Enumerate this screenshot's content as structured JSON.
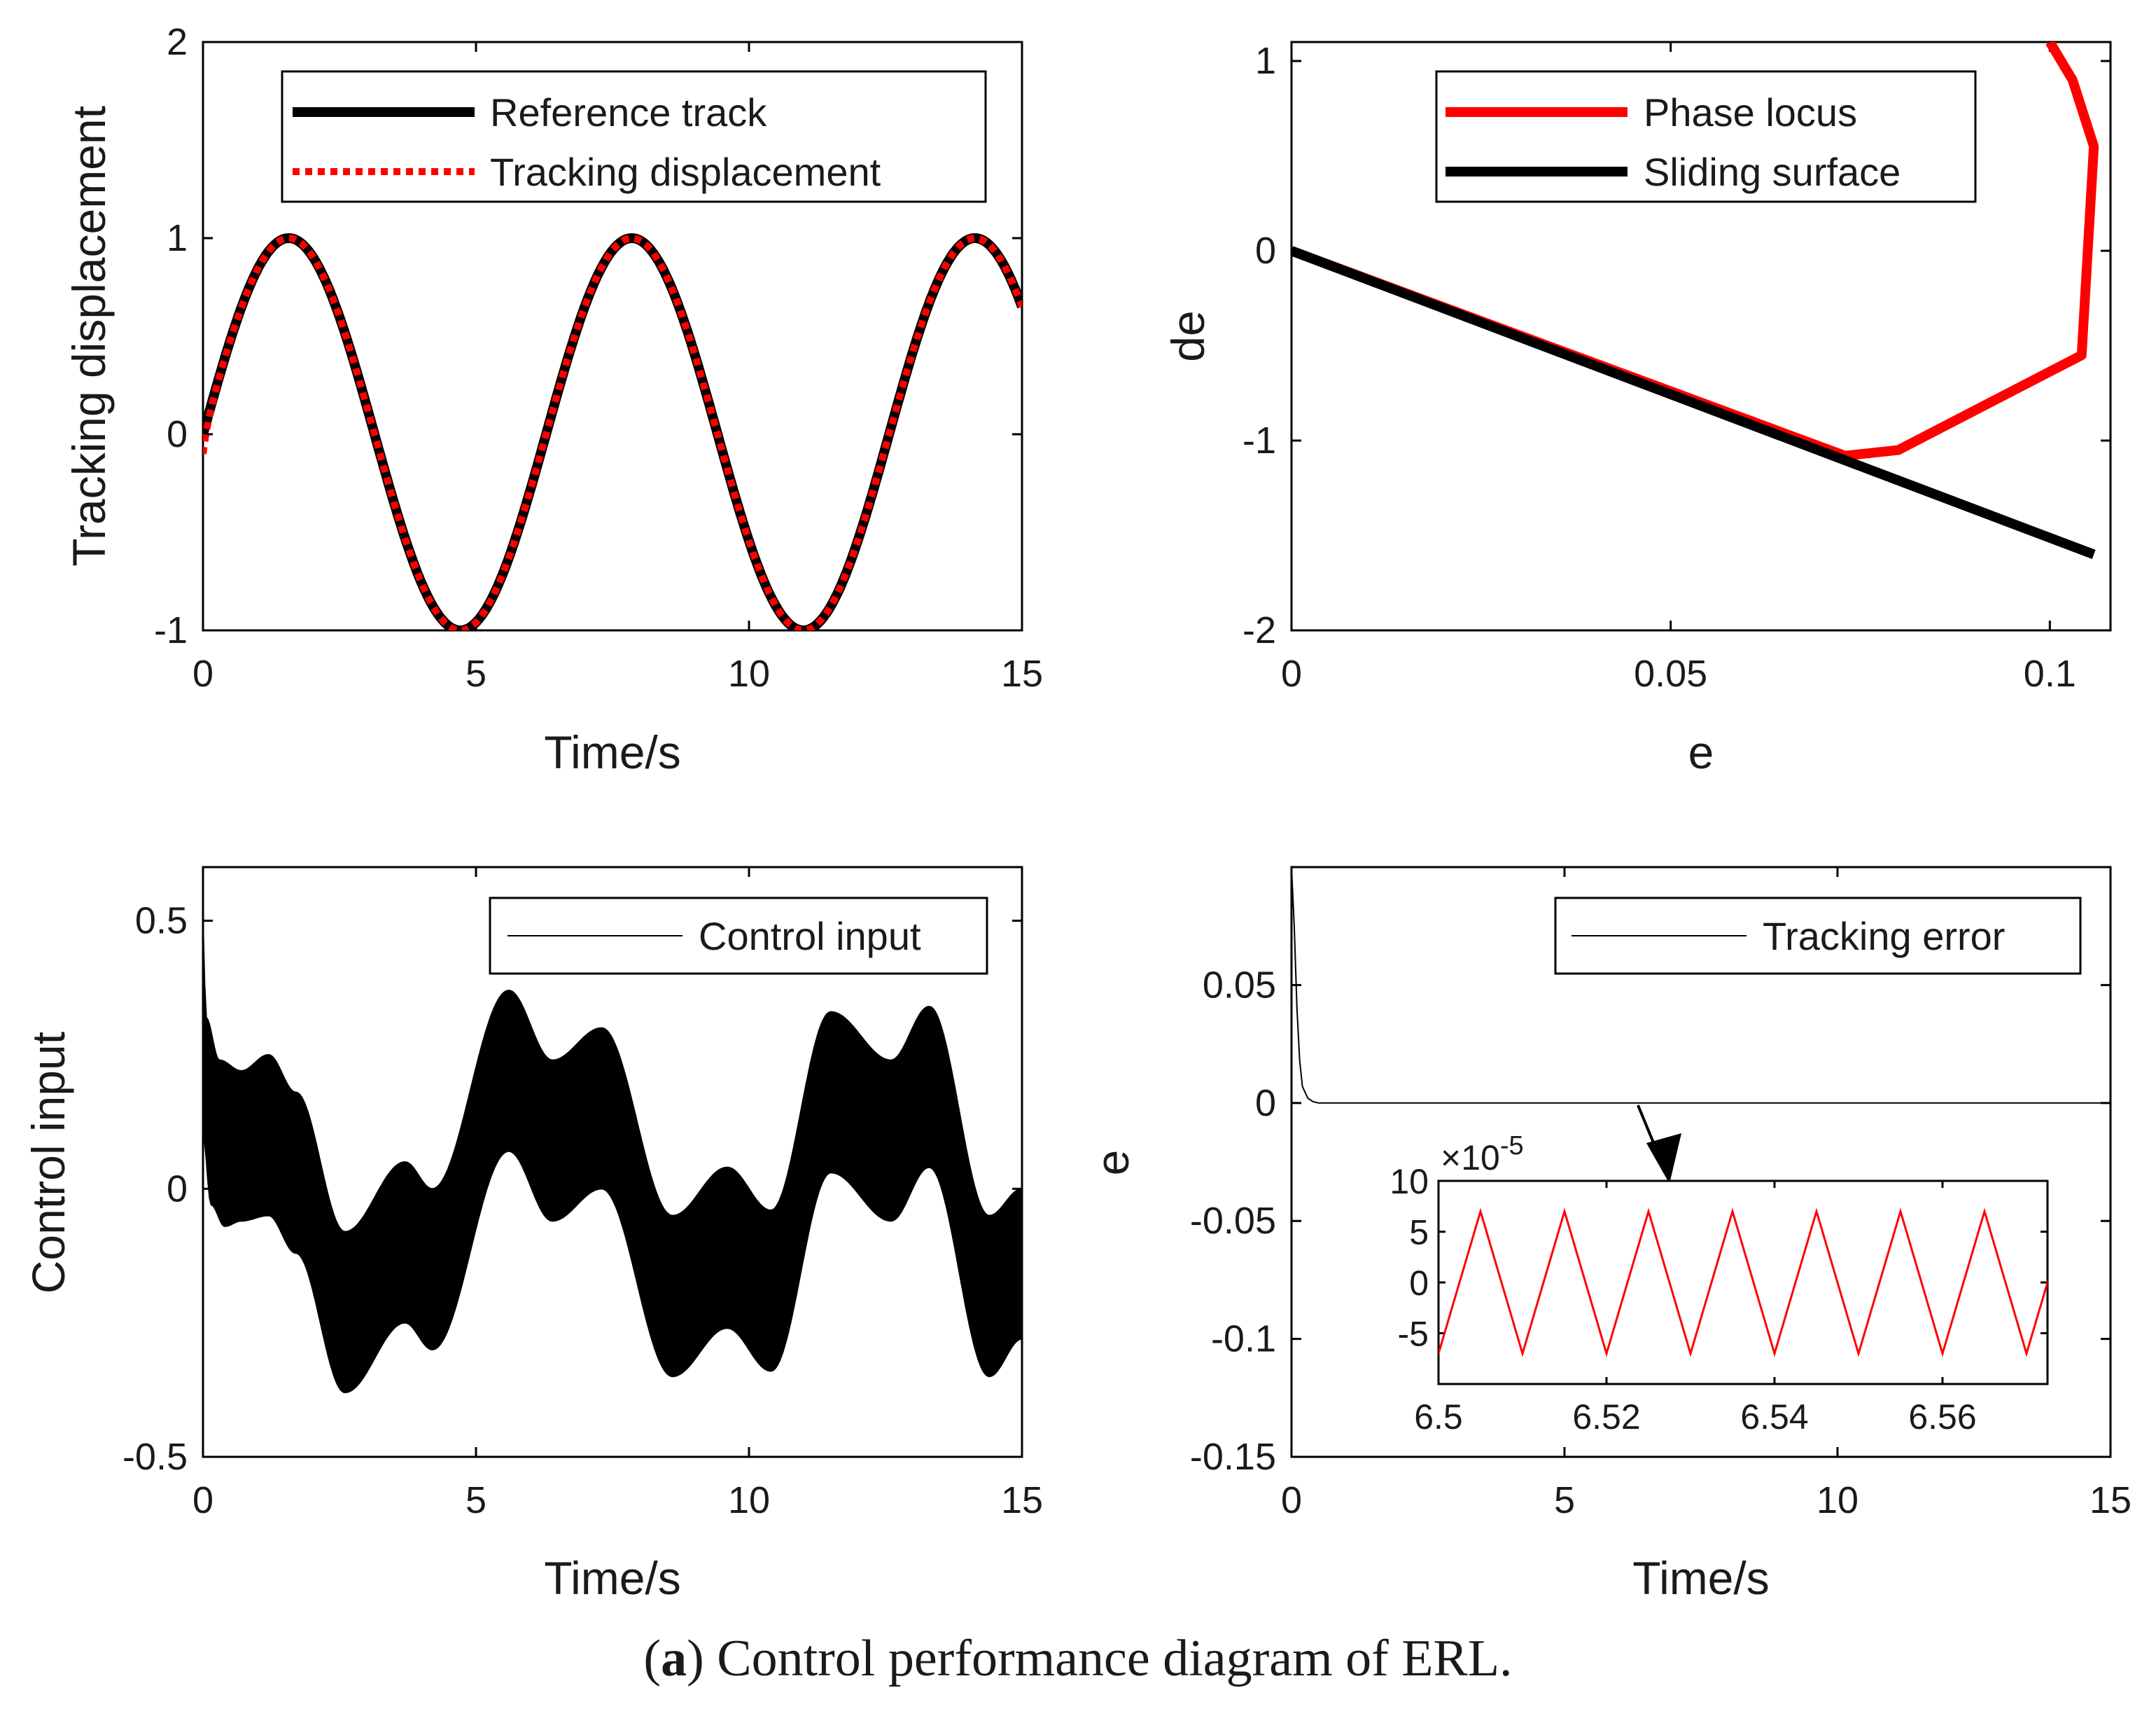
{
  "caption": {
    "label": "a",
    "text": ") Control performance diagram of ERL.",
    "open": "("
  },
  "chart_data": [
    {
      "id": "p1",
      "type": "line",
      "xlabel": "Time/s",
      "ylabel": "Tracking displacement",
      "xlim": [
        0,
        15
      ],
      "ylim": [
        -1,
        2
      ],
      "xticks": [
        0,
        5,
        10,
        15
      ],
      "yticks": [
        -1,
        0,
        1,
        2
      ],
      "legend": [
        {
          "name": "Reference track",
          "color": "#000000",
          "style": "solid"
        },
        {
          "name": "Tracking displacement",
          "color": "#ff0000",
          "style": "dotted"
        }
      ],
      "series": [
        {
          "name": "Reference track",
          "function": "y = sin(t)",
          "t_range": [
            0,
            15
          ]
        },
        {
          "name": "Tracking displacement",
          "function": "y ≈ sin(t), starts at -0.1",
          "t_range": [
            0,
            15
          ]
        }
      ]
    },
    {
      "id": "p2",
      "type": "line",
      "xlabel": "e",
      "ylabel": "de",
      "xlim": [
        0,
        0.108
      ],
      "ylim": [
        -2,
        1.1
      ],
      "xticks": [
        0,
        0.05,
        0.1
      ],
      "yticks": [
        -2,
        -1,
        0,
        1
      ],
      "legend": [
        {
          "name": "Phase locus",
          "color": "#ff0000"
        },
        {
          "name": "Sliding surface",
          "color": "#000000"
        }
      ],
      "series": [
        {
          "name": "Phase locus",
          "points": [
            [
              0.1,
              1.1
            ],
            [
              0.103,
              0.9
            ],
            [
              0.1058,
              0.55
            ],
            [
              0.1042,
              -0.55
            ],
            [
              0.08,
              -1.05
            ],
            [
              0.073,
              -1.08
            ],
            [
              0.05,
              -0.74
            ],
            [
              0.0,
              0.0
            ]
          ]
        },
        {
          "name": "Sliding surface",
          "points": [
            [
              0.0,
              0.0
            ],
            [
              0.1058,
              -1.6
            ]
          ]
        }
      ]
    },
    {
      "id": "p3",
      "type": "area",
      "xlabel": "Time/s",
      "ylabel": "Control input",
      "xlim": [
        0,
        15
      ],
      "ylim": [
        -0.5,
        0.6
      ],
      "xticks": [
        0,
        5,
        10,
        15
      ],
      "yticks": [
        -0.5,
        0,
        0.5
      ],
      "legend": [
        {
          "name": "Control input",
          "color": "#000000"
        }
      ],
      "series": [
        {
          "name": "Control input (upper envelope)",
          "x": [
            0,
            0.05,
            0.3,
            0.7,
            1.2,
            1.7,
            2.6,
            3.7,
            4.2,
            5.6,
            6.4,
            7.3,
            8.6,
            9.6,
            10.4,
            11.5,
            12.6,
            13.3,
            14.4,
            15
          ],
          "values": [
            0.5,
            0.32,
            0.24,
            0.22,
            0.25,
            0.18,
            -0.08,
            0.05,
            0.0,
            0.37,
            0.24,
            0.3,
            -0.05,
            0.04,
            -0.04,
            0.33,
            0.24,
            0.34,
            -0.05,
            0.0
          ]
        },
        {
          "name": "Control input (lower envelope)",
          "x": [
            0,
            0.15,
            0.4,
            0.7,
            1.2,
            1.7,
            2.6,
            3.7,
            4.2,
            5.6,
            6.4,
            7.3,
            8.6,
            9.6,
            10.4,
            11.5,
            12.6,
            13.3,
            14.4,
            15
          ],
          "values": [
            0.1,
            -0.03,
            -0.07,
            -0.06,
            -0.05,
            -0.12,
            -0.38,
            -0.25,
            -0.3,
            0.07,
            -0.06,
            0.0,
            -0.35,
            -0.26,
            -0.34,
            0.03,
            -0.06,
            0.04,
            -0.35,
            -0.28
          ]
        }
      ]
    },
    {
      "id": "p4",
      "type": "line",
      "xlabel": "Time/s",
      "ylabel": "e",
      "xlim": [
        0,
        15
      ],
      "ylim": [
        -0.15,
        0.1
      ],
      "xticks": [
        0,
        5,
        10,
        15
      ],
      "yticks": [
        -0.15,
        -0.1,
        -0.05,
        0,
        0.05
      ],
      "legend": [
        {
          "name": "Tracking error",
          "color": "#000000"
        }
      ],
      "series": [
        {
          "name": "Tracking error",
          "x": [
            0,
            0.05,
            0.1,
            0.15,
            0.2,
            0.3,
            0.4,
            0.5,
            15
          ],
          "values": [
            0.1,
            0.075,
            0.04,
            0.018,
            0.007,
            0.002,
            0.0005,
            0.0,
            0.0
          ]
        }
      ],
      "inset": {
        "type": "line",
        "xlim": [
          6.5,
          6.5725
        ],
        "ylim": [
          -10,
          10
        ],
        "xticks": [
          6.5,
          6.52,
          6.54,
          6.56
        ],
        "yticks": [
          -5,
          0,
          5,
          10
        ],
        "exponent_label": "×10",
        "exponent": "-5",
        "series": [
          {
            "name": "Tracking error (zoom)",
            "color": "#ff0000",
            "shape": "triangle",
            "period": 0.01,
            "amplitude": 7,
            "min_at": 6.5,
            "x_range": [
              6.5,
              6.5725
            ]
          }
        ]
      }
    }
  ]
}
